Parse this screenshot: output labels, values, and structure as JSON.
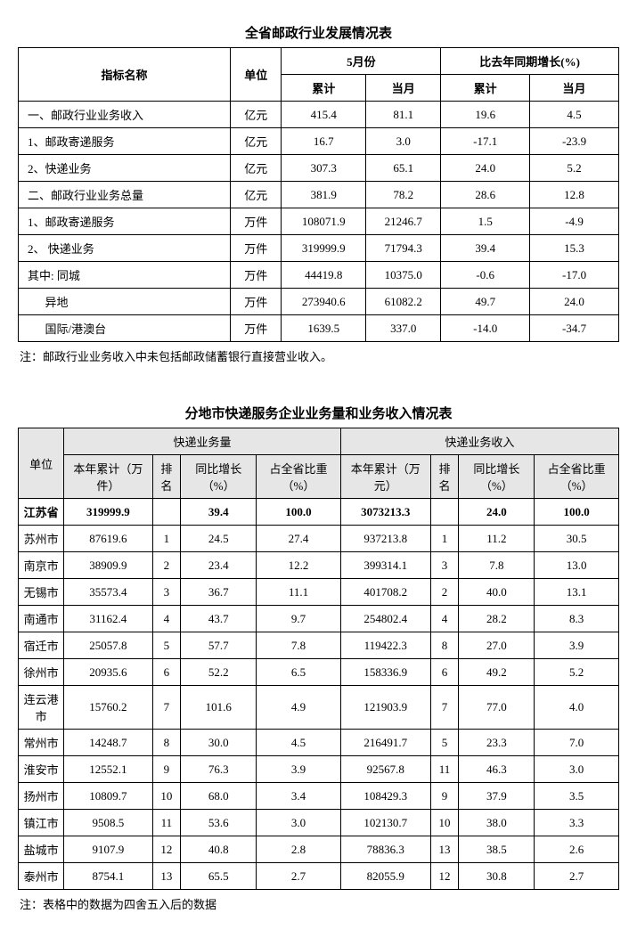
{
  "table1": {
    "title": "全省邮政行业发展情况表",
    "headers": {
      "indicator": "指标名称",
      "unit": "单位",
      "month": "5月份",
      "yoy": "比去年同期增长(%)",
      "cumul": "累计",
      "cur": "当月"
    },
    "rows": [
      {
        "name": "一、邮政行业业务收入",
        "unit": "亿元",
        "c": "415.4",
        "m": "81.1",
        "yc": "19.6",
        "ym": "4.5"
      },
      {
        "name": "1、邮政寄递服务",
        "unit": "亿元",
        "c": "16.7",
        "m": "3.0",
        "yc": "-17.1",
        "ym": "-23.9"
      },
      {
        "name": "2、快递业务",
        "unit": "亿元",
        "c": "307.3",
        "m": "65.1",
        "yc": "24.0",
        "ym": "5.2"
      },
      {
        "name": "二、邮政行业业务总量",
        "unit": "亿元",
        "c": "381.9",
        "m": "78.2",
        "yc": "28.6",
        "ym": "12.8"
      },
      {
        "name": "1、邮政寄递服务",
        "unit": "万件",
        "c": "108071.9",
        "m": "21246.7",
        "yc": "1.5",
        "ym": "-4.9"
      },
      {
        "name": "2、 快递业务",
        "unit": "万件",
        "c": "319999.9",
        "m": "71794.3",
        "yc": "39.4",
        "ym": "15.3"
      },
      {
        "name": "其中: 同城",
        "unit": "万件",
        "c": "44419.8",
        "m": "10375.0",
        "yc": "-0.6",
        "ym": "-17.0"
      },
      {
        "name": "      异地",
        "unit": "万件",
        "c": "273940.6",
        "m": "61082.2",
        "yc": "49.7",
        "ym": "24.0"
      },
      {
        "name": "      国际/港澳台",
        "unit": "万件",
        "c": "1639.5",
        "m": "337.0",
        "yc": "-14.0",
        "ym": "-34.7"
      }
    ],
    "note": "注：邮政行业业务收入中未包括邮政储蓄银行直接营业收入。"
  },
  "table2": {
    "title": "分地市快递服务企业业务量和业务收入情况表",
    "headers": {
      "unit": "单位",
      "vol": "快递业务量",
      "rev": "快递业务收入",
      "ycum": "本年累计（万件）",
      "ycum2": "本年累计（万元）",
      "rank": "排名",
      "yoy": "同比增长（%）",
      "share": "占全省比重（%）"
    },
    "rows": [
      {
        "city": "江苏省",
        "vcum": "319999.9",
        "vrank": "",
        "vyoy": "39.4",
        "vshare": "100.0",
        "rcum": "3073213.3",
        "rrank": "",
        "ryoy": "24.0",
        "rshare": "100.0",
        "bold": true
      },
      {
        "city": "苏州市",
        "vcum": "87619.6",
        "vrank": "1",
        "vyoy": "24.5",
        "vshare": "27.4",
        "rcum": "937213.8",
        "rrank": "1",
        "ryoy": "11.2",
        "rshare": "30.5"
      },
      {
        "city": "南京市",
        "vcum": "38909.9",
        "vrank": "2",
        "vyoy": "23.4",
        "vshare": "12.2",
        "rcum": "399314.1",
        "rrank": "3",
        "ryoy": "7.8",
        "rshare": "13.0"
      },
      {
        "city": "无锡市",
        "vcum": "35573.4",
        "vrank": "3",
        "vyoy": "36.7",
        "vshare": "11.1",
        "rcum": "401708.2",
        "rrank": "2",
        "ryoy": "40.0",
        "rshare": "13.1"
      },
      {
        "city": "南通市",
        "vcum": "31162.4",
        "vrank": "4",
        "vyoy": "43.7",
        "vshare": "9.7",
        "rcum": "254802.4",
        "rrank": "4",
        "ryoy": "28.2",
        "rshare": "8.3"
      },
      {
        "city": "宿迁市",
        "vcum": "25057.8",
        "vrank": "5",
        "vyoy": "57.7",
        "vshare": "7.8",
        "rcum": "119422.3",
        "rrank": "8",
        "ryoy": "27.0",
        "rshare": "3.9"
      },
      {
        "city": "徐州市",
        "vcum": "20935.6",
        "vrank": "6",
        "vyoy": "52.2",
        "vshare": "6.5",
        "rcum": "158336.9",
        "rrank": "6",
        "ryoy": "49.2",
        "rshare": "5.2"
      },
      {
        "city": "连云港市",
        "vcum": "15760.2",
        "vrank": "7",
        "vyoy": "101.6",
        "vshare": "4.9",
        "rcum": "121903.9",
        "rrank": "7",
        "ryoy": "77.0",
        "rshare": "4.0"
      },
      {
        "city": "常州市",
        "vcum": "14248.7",
        "vrank": "8",
        "vyoy": "30.0",
        "vshare": "4.5",
        "rcum": "216491.7",
        "rrank": "5",
        "ryoy": "23.3",
        "rshare": "7.0"
      },
      {
        "city": "淮安市",
        "vcum": "12552.1",
        "vrank": "9",
        "vyoy": "76.3",
        "vshare": "3.9",
        "rcum": "92567.8",
        "rrank": "11",
        "ryoy": "46.3",
        "rshare": "3.0"
      },
      {
        "city": "扬州市",
        "vcum": "10809.7",
        "vrank": "10",
        "vyoy": "68.0",
        "vshare": "3.4",
        "rcum": "108429.3",
        "rrank": "9",
        "ryoy": "37.9",
        "rshare": "3.5"
      },
      {
        "city": "镇江市",
        "vcum": "9508.5",
        "vrank": "11",
        "vyoy": "53.6",
        "vshare": "3.0",
        "rcum": "102130.7",
        "rrank": "10",
        "ryoy": "38.0",
        "rshare": "3.3"
      },
      {
        "city": "盐城市",
        "vcum": "9107.9",
        "vrank": "12",
        "vyoy": "40.8",
        "vshare": "2.8",
        "rcum": "78836.3",
        "rrank": "13",
        "ryoy": "38.5",
        "rshare": "2.6"
      },
      {
        "city": "泰州市",
        "vcum": "8754.1",
        "vrank": "13",
        "vyoy": "65.5",
        "vshare": "2.7",
        "rcum": "82055.9",
        "rrank": "12",
        "ryoy": "30.8",
        "rshare": "2.7"
      }
    ],
    "note": "注：表格中的数据为四舍五入后的数据"
  },
  "style": {
    "bg": "#ffffff",
    "border": "#000000",
    "hdr_bg": "#e6e6e6",
    "font_size": 13,
    "title_size": 15
  }
}
